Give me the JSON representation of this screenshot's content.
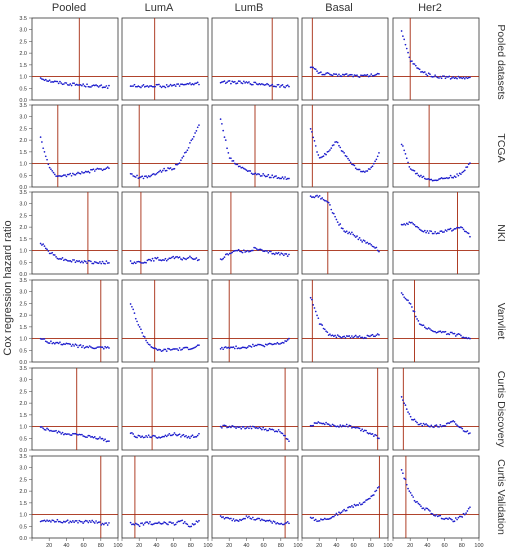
{
  "figure": {
    "ylabel": "Cox regression hazard ratio",
    "columns": [
      "Pooled",
      "LumA",
      "LumB",
      "Basal",
      "Her2"
    ],
    "rows": [
      "Pooled datasets",
      "TCGA",
      "NKI",
      "Vanvliet",
      "Curtis Discovery",
      "Curtis Validation"
    ]
  },
  "chart_data": {
    "type": "scatter",
    "layout": "small-multiples grid (6 rows x 5 columns)",
    "ylabel": "Cox regression hazard ratio",
    "xlim": [
      0,
      100
    ],
    "ylim": [
      0,
      3.5
    ],
    "x_ticks": [
      0,
      20,
      40,
      60,
      80,
      100
    ],
    "y_ticks": [
      0.0,
      0.5,
      1.0,
      1.5,
      2.0,
      2.5,
      3.0,
      3.5
    ],
    "y_tick_labels": [
      "0.0",
      "0.5",
      "1.0",
      "1.5",
      "2.0",
      "2.5",
      "3.0",
      "3.5"
    ],
    "x_tick_labels": [
      "20",
      "40",
      "60",
      "80",
      "100"
    ],
    "reference_line_y": 1.0,
    "colors": {
      "points": "#1c1ccc",
      "reference": "#a52a0f",
      "frame": "#333333"
    },
    "panels": [
      {
        "row": "Pooled datasets",
        "column": "Pooled",
        "cutoff_x": 55,
        "x": [
          10,
          20,
          30,
          40,
          50,
          60,
          70,
          80,
          90
        ],
        "y": [
          0.95,
          0.82,
          0.75,
          0.7,
          0.66,
          0.63,
          0.6,
          0.58,
          0.56
        ]
      },
      {
        "row": "Pooled datasets",
        "column": "LumA",
        "cutoff_x": 38,
        "x": [
          10,
          20,
          30,
          40,
          50,
          60,
          70,
          80,
          90
        ],
        "y": [
          0.62,
          0.58,
          0.6,
          0.62,
          0.58,
          0.62,
          0.66,
          0.68,
          0.7
        ]
      },
      {
        "row": "Pooled datasets",
        "column": "LumB",
        "cutoff_x": 70,
        "x": [
          10,
          20,
          30,
          40,
          50,
          60,
          70,
          80,
          90
        ],
        "y": [
          0.78,
          0.76,
          0.75,
          0.73,
          0.7,
          0.68,
          0.64,
          0.6,
          0.58
        ]
      },
      {
        "row": "Pooled datasets",
        "column": "Basal",
        "cutoff_x": 12,
        "x": [
          10,
          20,
          30,
          40,
          50,
          60,
          70,
          80,
          90
        ],
        "y": [
          1.45,
          1.15,
          1.1,
          1.05,
          1.08,
          1.05,
          1.02,
          1.05,
          1.1
        ]
      },
      {
        "row": "Pooled datasets",
        "column": "Her2",
        "cutoff_x": 20,
        "x": [
          10,
          20,
          30,
          40,
          50,
          60,
          70,
          80,
          90
        ],
        "y": [
          2.9,
          1.7,
          1.3,
          1.1,
          1.0,
          0.98,
          0.95,
          0.95,
          0.92
        ]
      },
      {
        "row": "TCGA",
        "column": "Pooled",
        "cutoff_x": 30,
        "x": [
          10,
          20,
          30,
          40,
          50,
          60,
          70,
          80,
          90
        ],
        "y": [
          2.1,
          0.8,
          0.45,
          0.5,
          0.55,
          0.6,
          0.7,
          0.75,
          0.85
        ]
      },
      {
        "row": "TCGA",
        "column": "LumA",
        "cutoff_x": 20,
        "x": [
          10,
          20,
          30,
          40,
          50,
          60,
          70,
          80,
          90
        ],
        "y": [
          0.55,
          0.4,
          0.45,
          0.6,
          0.75,
          0.8,
          1.2,
          1.9,
          2.7
        ]
      },
      {
        "row": "TCGA",
        "column": "LumB",
        "cutoff_x": 50,
        "x": [
          10,
          20,
          30,
          40,
          50,
          60,
          70,
          80,
          90
        ],
        "y": [
          2.9,
          1.3,
          0.9,
          0.75,
          0.55,
          0.5,
          0.45,
          0.4,
          0.35
        ]
      },
      {
        "row": "TCGA",
        "column": "Basal",
        "cutoff_x": 12,
        "x": [
          10,
          20,
          30,
          40,
          50,
          60,
          70,
          80,
          90
        ],
        "y": [
          2.5,
          1.2,
          1.5,
          1.95,
          1.35,
          0.9,
          0.6,
          0.8,
          1.45
        ]
      },
      {
        "row": "TCGA",
        "column": "Her2",
        "cutoff_x": 42,
        "x": [
          10,
          20,
          30,
          40,
          50,
          60,
          70,
          80,
          90
        ],
        "y": [
          1.85,
          0.8,
          0.5,
          0.35,
          0.3,
          0.38,
          0.45,
          0.55,
          1.1
        ]
      },
      {
        "row": "NKI",
        "column": "Pooled",
        "cutoff_x": 65,
        "x": [
          10,
          20,
          30,
          40,
          50,
          60,
          70,
          80,
          90
        ],
        "y": [
          1.35,
          0.95,
          0.7,
          0.6,
          0.55,
          0.52,
          0.5,
          0.48,
          0.5
        ]
      },
      {
        "row": "NKI",
        "column": "LumA",
        "cutoff_x": 22,
        "x": [
          10,
          20,
          30,
          40,
          50,
          60,
          70,
          80,
          90
        ],
        "y": [
          0.5,
          0.5,
          0.55,
          0.65,
          0.6,
          0.7,
          0.65,
          0.7,
          0.6
        ]
      },
      {
        "row": "NKI",
        "column": "LumB",
        "cutoff_x": 22,
        "x": [
          10,
          20,
          30,
          40,
          50,
          60,
          70,
          80,
          90
        ],
        "y": [
          0.6,
          0.9,
          1.0,
          0.95,
          1.1,
          0.95,
          0.9,
          0.85,
          0.8
        ]
      },
      {
        "row": "NKI",
        "column": "Basal",
        "cutoff_x": 30,
        "x": [
          10,
          20,
          30,
          40,
          50,
          60,
          70,
          80,
          90
        ],
        "y": [
          3.3,
          3.3,
          3.1,
          2.3,
          1.8,
          1.7,
          1.4,
          1.3,
          1.0
        ]
      },
      {
        "row": "NKI",
        "column": "Her2",
        "cutoff_x": 75,
        "x": [
          10,
          20,
          30,
          40,
          50,
          60,
          70,
          80,
          90
        ],
        "y": [
          2.1,
          2.2,
          1.9,
          1.8,
          1.75,
          1.85,
          1.9,
          2.0,
          1.6
        ]
      },
      {
        "row": "Vanvliet",
        "column": "Pooled",
        "cutoff_x": 80,
        "x": [
          10,
          20,
          30,
          40,
          50,
          60,
          70,
          80,
          90
        ],
        "y": [
          1.0,
          0.85,
          0.8,
          0.75,
          0.7,
          0.65,
          0.62,
          0.6,
          0.6
        ]
      },
      {
        "row": "Vanvliet",
        "column": "LumA",
        "cutoff_x": 38,
        "x": [
          10,
          20,
          30,
          40,
          50,
          60,
          70,
          80,
          90
        ],
        "y": [
          2.5,
          1.5,
          0.8,
          0.5,
          0.5,
          0.55,
          0.55,
          0.6,
          0.7
        ]
      },
      {
        "row": "Vanvliet",
        "column": "LumB",
        "cutoff_x": 20,
        "x": [
          10,
          20,
          30,
          40,
          50,
          60,
          70,
          80,
          90
        ],
        "y": [
          0.6,
          0.6,
          0.62,
          0.65,
          0.7,
          0.72,
          0.75,
          0.8,
          0.95
        ]
      },
      {
        "row": "Vanvliet",
        "column": "Basal",
        "cutoff_x": 12,
        "x": [
          10,
          20,
          30,
          40,
          50,
          60,
          70,
          80,
          90
        ],
        "y": [
          2.8,
          1.7,
          1.2,
          1.1,
          1.05,
          1.1,
          1.05,
          1.1,
          1.2
        ]
      },
      {
        "row": "Vanvliet",
        "column": "Her2",
        "cutoff_x": 25,
        "x": [
          10,
          20,
          30,
          40,
          50,
          60,
          70,
          80,
          90
        ],
        "y": [
          2.9,
          2.5,
          1.7,
          1.45,
          1.3,
          1.25,
          1.2,
          1.1,
          1.0
        ]
      },
      {
        "row": "Curtis Discovery",
        "column": "Pooled",
        "cutoff_x": 52,
        "x": [
          10,
          20,
          30,
          40,
          50,
          60,
          70,
          80,
          90
        ],
        "y": [
          0.95,
          0.85,
          0.75,
          0.7,
          0.65,
          0.6,
          0.55,
          0.5,
          0.35
        ]
      },
      {
        "row": "Curtis Discovery",
        "column": "LumA",
        "cutoff_x": 35,
        "x": [
          10,
          20,
          30,
          40,
          50,
          60,
          70,
          80,
          90
        ],
        "y": [
          0.7,
          0.55,
          0.6,
          0.55,
          0.6,
          0.7,
          0.6,
          0.55,
          0.65
        ]
      },
      {
        "row": "Curtis Discovery",
        "column": "LumB",
        "cutoff_x": 85,
        "x": [
          10,
          20,
          30,
          40,
          50,
          60,
          70,
          80,
          90
        ],
        "y": [
          1.0,
          1.0,
          0.95,
          0.95,
          0.95,
          0.9,
          0.85,
          0.8,
          0.4
        ]
      },
      {
        "row": "Curtis Discovery",
        "column": "Basal",
        "cutoff_x": 88,
        "x": [
          10,
          20,
          30,
          40,
          50,
          60,
          70,
          80,
          90
        ],
        "y": [
          1.05,
          1.2,
          1.1,
          1.0,
          1.05,
          0.95,
          0.85,
          0.7,
          0.5
        ]
      },
      {
        "row": "Curtis Discovery",
        "column": "Her2",
        "cutoff_x": 12,
        "x": [
          10,
          20,
          30,
          40,
          50,
          60,
          70,
          80,
          90
        ],
        "y": [
          2.3,
          1.4,
          1.1,
          1.05,
          1.0,
          1.05,
          1.2,
          0.9,
          0.7
        ]
      },
      {
        "row": "Curtis Validation",
        "column": "Pooled",
        "cutoff_x": 80,
        "x": [
          10,
          20,
          30,
          40,
          50,
          60,
          70,
          80,
          90
        ],
        "y": [
          0.75,
          0.75,
          0.72,
          0.7,
          0.7,
          0.68,
          0.7,
          0.62,
          0.6
        ]
      },
      {
        "row": "Curtis Validation",
        "column": "LumA",
        "cutoff_x": 15,
        "x": [
          10,
          20,
          30,
          40,
          50,
          60,
          70,
          80,
          90
        ],
        "y": [
          0.6,
          0.55,
          0.65,
          0.6,
          0.65,
          0.6,
          0.7,
          0.5,
          0.8
        ]
      },
      {
        "row": "Curtis Validation",
        "column": "LumB",
        "cutoff_x": 85,
        "x": [
          10,
          20,
          30,
          40,
          50,
          60,
          70,
          80,
          90
        ],
        "y": [
          0.9,
          0.8,
          0.75,
          0.9,
          0.8,
          0.75,
          0.7,
          0.6,
          0.65
        ]
      },
      {
        "row": "Curtis Validation",
        "column": "Basal",
        "cutoff_x": 90,
        "x": [
          10,
          20,
          30,
          40,
          50,
          60,
          70,
          80,
          90
        ],
        "y": [
          0.85,
          0.75,
          0.85,
          1.0,
          1.2,
          1.35,
          1.5,
          1.7,
          2.2
        ]
      },
      {
        "row": "Curtis Validation",
        "column": "Her2",
        "cutoff_x": 15,
        "x": [
          10,
          20,
          30,
          40,
          50,
          60,
          70,
          80,
          90
        ],
        "y": [
          2.9,
          1.9,
          1.4,
          1.2,
          0.95,
          0.85,
          0.75,
          0.9,
          1.3
        ]
      }
    ]
  }
}
